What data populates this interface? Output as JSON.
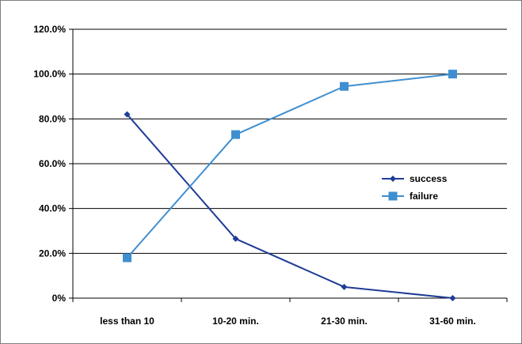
{
  "chart_data": {
    "type": "line",
    "title": "",
    "xlabel": "",
    "ylabel": "",
    "categories": [
      "less than 10",
      "10-20 min.",
      "21-30 min.",
      "31-60 min."
    ],
    "ylim": [
      0,
      120
    ],
    "yticks": [
      0,
      20,
      40,
      60,
      80,
      100,
      120
    ],
    "ytick_labels": [
      "0%",
      "20.0%",
      "40.0%",
      "60.0%",
      "80.0%",
      "100.0%",
      "120.0%"
    ],
    "grid": true,
    "legend_position": "right",
    "series": [
      {
        "name": "success",
        "values": [
          82.0,
          26.5,
          5.0,
          0.0
        ],
        "color": "#1f3c96",
        "marker": "diamond"
      },
      {
        "name": "failure",
        "values": [
          18.0,
          73.0,
          94.5,
          100.0
        ],
        "color": "#3f8fd0",
        "marker": "square"
      }
    ]
  }
}
